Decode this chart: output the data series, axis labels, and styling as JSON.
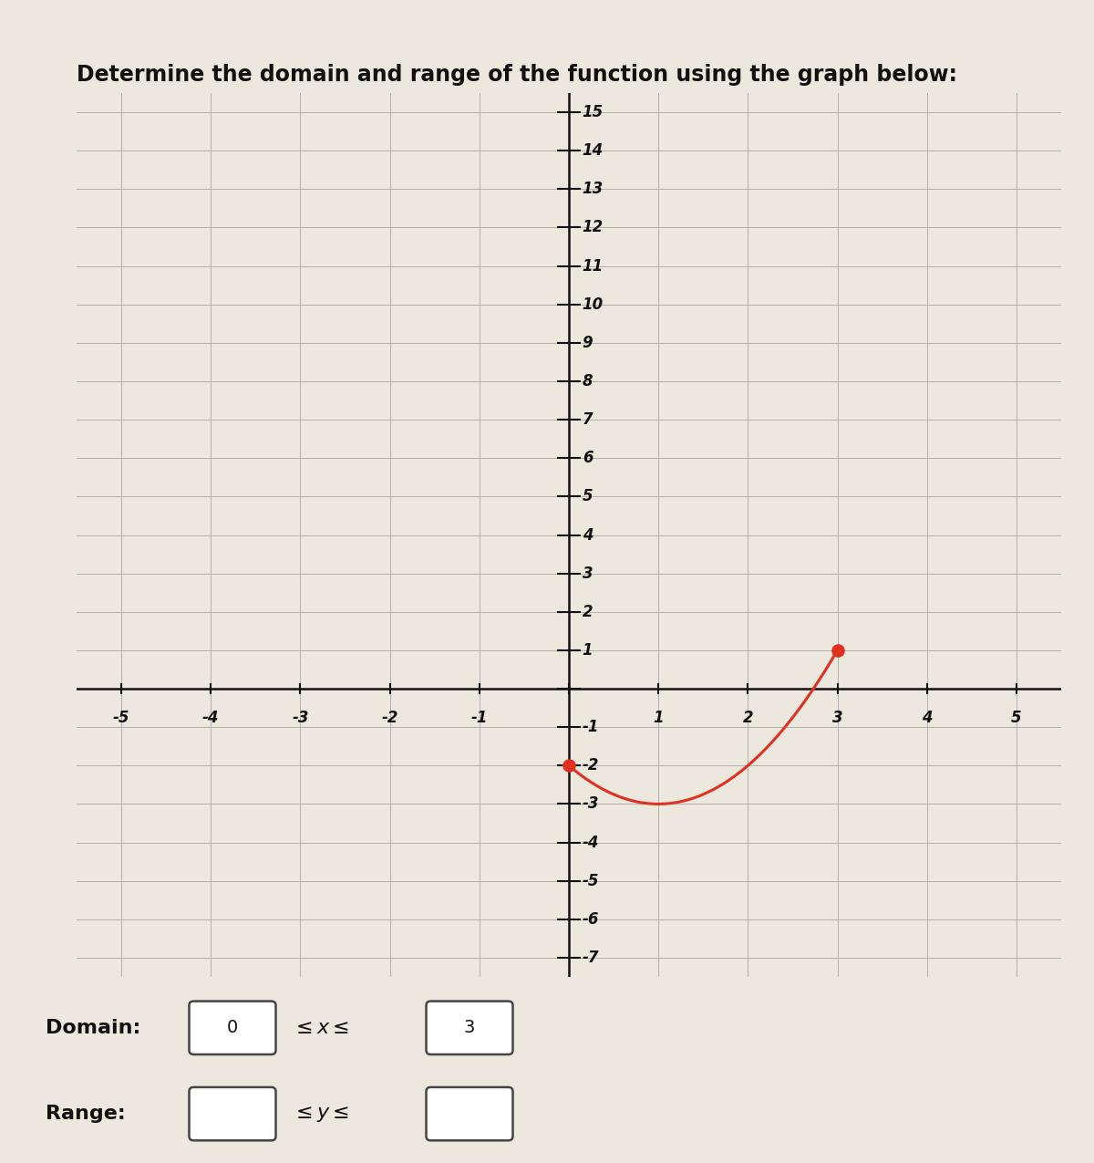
{
  "title": "Determine the domain and range of the function using the graph below:",
  "title_fontsize": 17,
  "title_fontweight": "bold",
  "xlim": [
    -5.5,
    5.5
  ],
  "ylim": [
    -7.5,
    15.5
  ],
  "xticks": [
    -5,
    -4,
    -3,
    -2,
    -1,
    1,
    2,
    3,
    4,
    5
  ],
  "yticks": [
    -7,
    -6,
    -5,
    -4,
    -3,
    -2,
    -1,
    1,
    2,
    3,
    4,
    5,
    6,
    7,
    8,
    9,
    10,
    11,
    12,
    13,
    14,
    15
  ],
  "curve_color": "#e03020",
  "curve_linewidth": 2.2,
  "dot_color": "#e03020",
  "dot_size": 90,
  "bg_color": "#ede8de",
  "grid_color": "#b0b0b0",
  "axis_color": "#111111",
  "domain_label": "Domain:",
  "range_label": "Range:",
  "domain_val1": "0",
  "domain_val2": "3",
  "label_fontsize": 12,
  "tick_fontsize": 12
}
